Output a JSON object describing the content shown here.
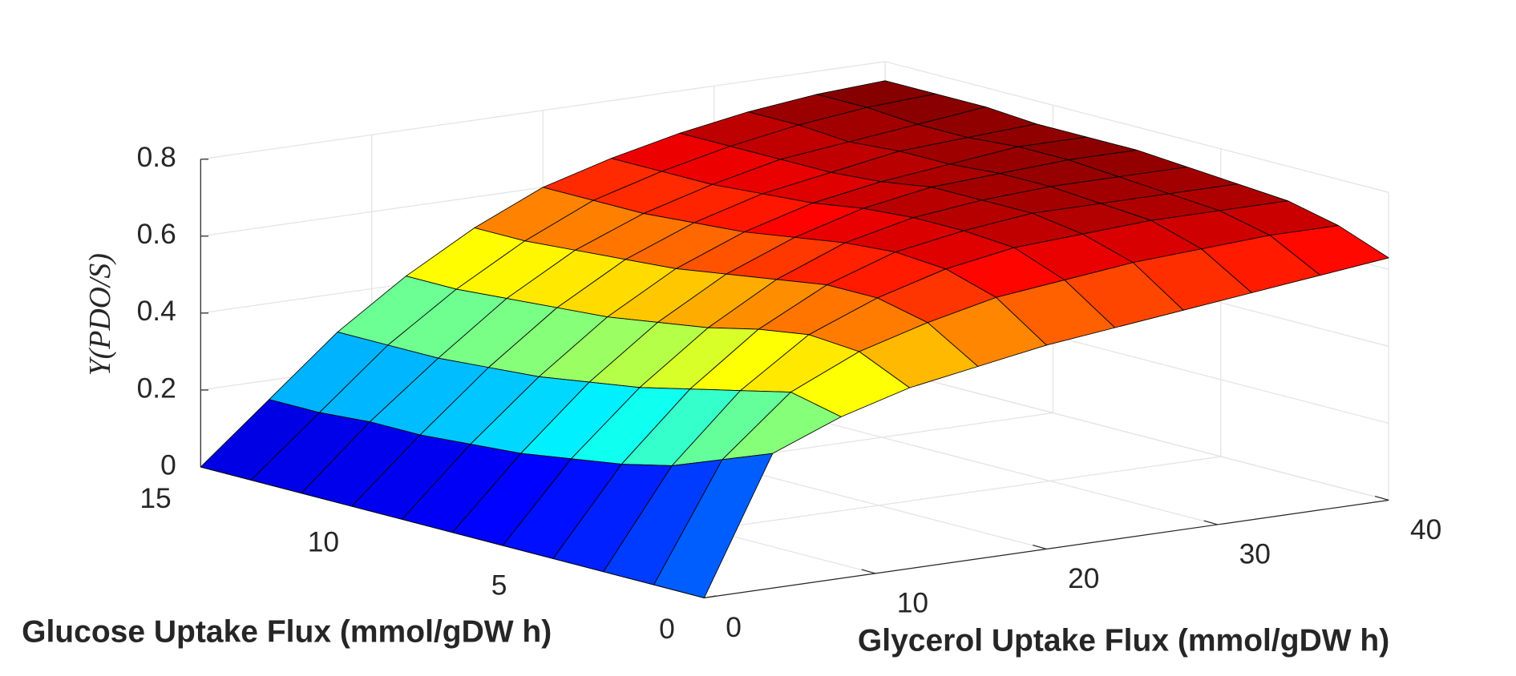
{
  "chart_data": {
    "type": "surface",
    "xlabel": "Glycerol Uptake Flux (mmol/gDW h)",
    "ylabel": "Glucose Uptake Flux (mmol/gDW h)",
    "zlabel": "Y(PDO/S)",
    "x": [
      0,
      4,
      8,
      12,
      16,
      20,
      24,
      28,
      32,
      36,
      40
    ],
    "y": [
      0,
      1.5,
      3,
      4.5,
      6,
      7.5,
      9,
      10.5,
      12,
      13.5,
      15
    ],
    "z": [
      [
        0,
        0.35,
        0.42,
        0.47,
        0.5,
        0.53,
        0.55,
        0.57,
        0.59,
        0.61,
        0.63
      ],
      [
        0,
        0.3,
        0.45,
        0.53,
        0.58,
        0.62,
        0.64,
        0.66,
        0.67,
        0.68,
        0.68
      ],
      [
        0,
        0.25,
        0.42,
        0.54,
        0.61,
        0.66,
        0.69,
        0.7,
        0.71,
        0.71,
        0.71
      ],
      [
        0,
        0.22,
        0.39,
        0.52,
        0.61,
        0.67,
        0.7,
        0.72,
        0.72,
        0.72,
        0.72
      ],
      [
        0,
        0.2,
        0.36,
        0.49,
        0.59,
        0.66,
        0.7,
        0.72,
        0.73,
        0.73,
        0.73
      ],
      [
        0,
        0.18,
        0.34,
        0.47,
        0.57,
        0.64,
        0.69,
        0.72,
        0.73,
        0.74,
        0.74
      ],
      [
        0,
        0.17,
        0.32,
        0.45,
        0.55,
        0.62,
        0.67,
        0.7,
        0.72,
        0.74,
        0.74
      ],
      [
        0,
        0.16,
        0.31,
        0.44,
        0.54,
        0.61,
        0.66,
        0.69,
        0.72,
        0.73,
        0.74
      ],
      [
        0,
        0.16,
        0.3,
        0.43,
        0.53,
        0.6,
        0.65,
        0.69,
        0.71,
        0.73,
        0.75
      ],
      [
        0,
        0.15,
        0.3,
        0.42,
        0.52,
        0.6,
        0.65,
        0.69,
        0.72,
        0.74,
        0.75
      ],
      [
        0,
        0.15,
        0.3,
        0.42,
        0.52,
        0.6,
        0.65,
        0.69,
        0.72,
        0.74,
        0.75
      ]
    ],
    "xlim": [
      0,
      40
    ],
    "xticks": [
      0,
      10,
      20,
      30,
      40
    ],
    "ylim": [
      0,
      15
    ],
    "yticks": [
      0,
      5,
      10,
      15
    ],
    "zlim": [
      0,
      0.8
    ],
    "zticks": [
      0,
      0.2,
      0.4,
      0.6,
      0.8
    ],
    "grid": true
  }
}
